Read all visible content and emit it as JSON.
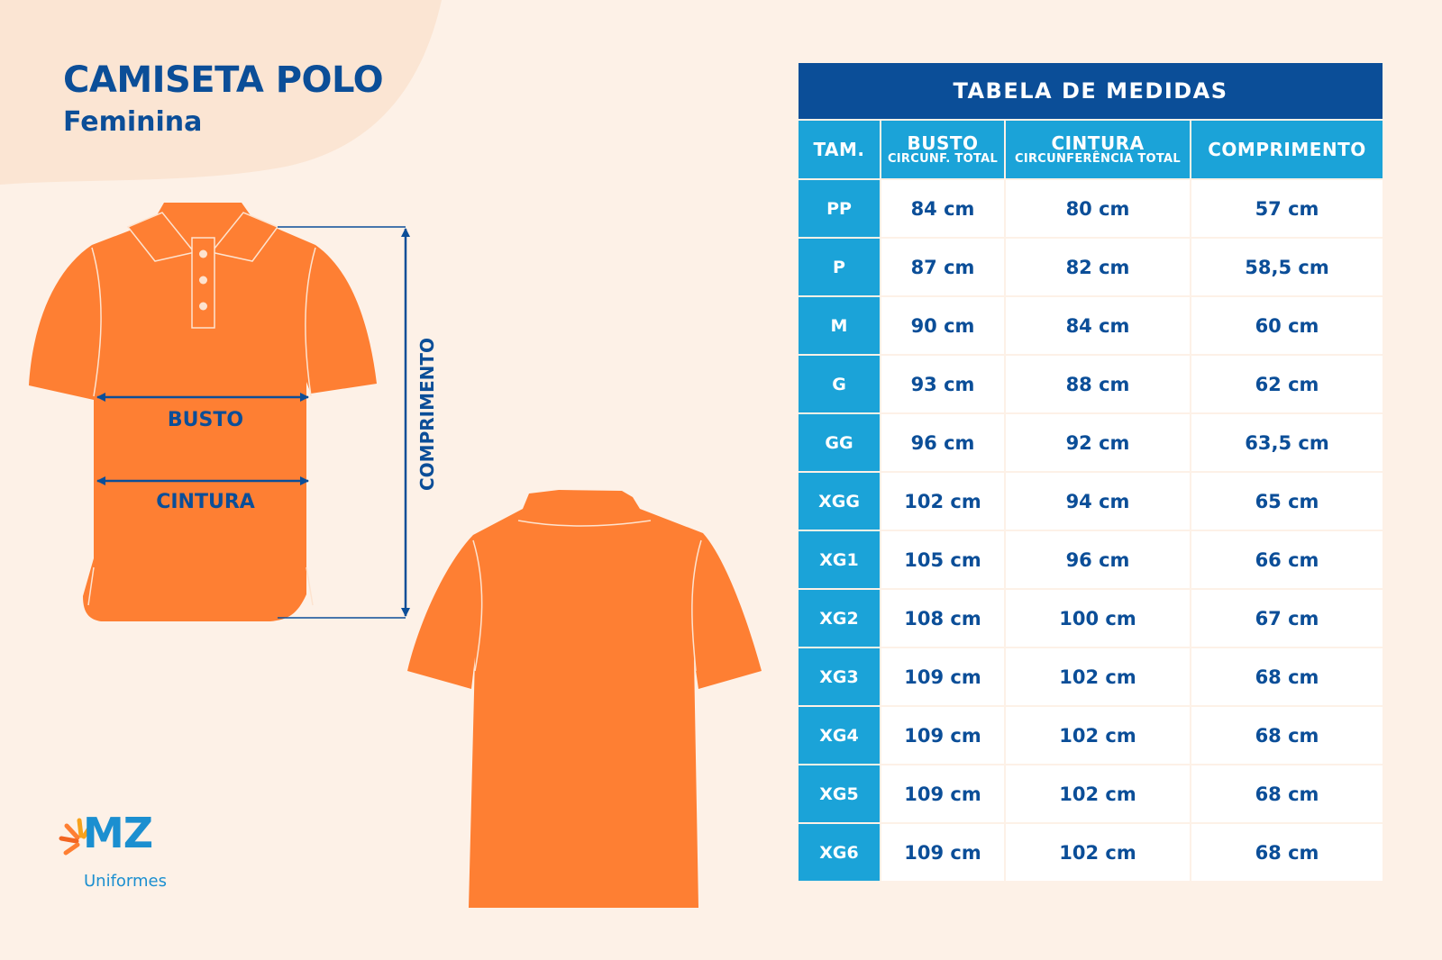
{
  "header": {
    "title": "CAMISETA POLO",
    "subtitle": "Feminina"
  },
  "figure": {
    "busto_label": "BUSTO",
    "cintura_label": "CINTURA",
    "comprimento_label": "COMPRIMENTO",
    "shirt_color": "#fe7f33",
    "arrow_color": "#0b4e98"
  },
  "logo": {
    "text": "MZ",
    "subtext": "Uniformes"
  },
  "table": {
    "title": "TABELA DE MEDIDAS",
    "headers": [
      {
        "label": "TAM.",
        "sub": ""
      },
      {
        "label": "BUSTO",
        "sub": "CIRCUNF. TOTAL"
      },
      {
        "label": "CINTURA",
        "sub": "CIRCUNFERÊNCIA TOTAL"
      },
      {
        "label": "COMPRIMENTO",
        "sub": ""
      }
    ],
    "rows": [
      [
        "PP",
        "84 cm",
        "80 cm",
        "57 cm"
      ],
      [
        "P",
        "87 cm",
        "82 cm",
        "58,5 cm"
      ],
      [
        "M",
        "90 cm",
        "84 cm",
        "60 cm"
      ],
      [
        "G",
        "93 cm",
        "88 cm",
        "62 cm"
      ],
      [
        "GG",
        "96 cm",
        "92 cm",
        "63,5 cm"
      ],
      [
        "XGG",
        "102 cm",
        "94 cm",
        "65 cm"
      ],
      [
        "XG1",
        "105 cm",
        "96 cm",
        "66 cm"
      ],
      [
        "XG2",
        "108 cm",
        "100 cm",
        "67 cm"
      ],
      [
        "XG3",
        "109 cm",
        "102 cm",
        "68 cm"
      ],
      [
        "XG4",
        "109 cm",
        "102 cm",
        "68 cm"
      ],
      [
        "XG5",
        "109 cm",
        "102 cm",
        "68 cm"
      ],
      [
        "XG6",
        "109 cm",
        "102 cm",
        "68 cm"
      ]
    ],
    "colors": {
      "title_bg": "#0b4e98",
      "header_bg": "#1ba3d8",
      "text": "#0b4e98"
    }
  }
}
